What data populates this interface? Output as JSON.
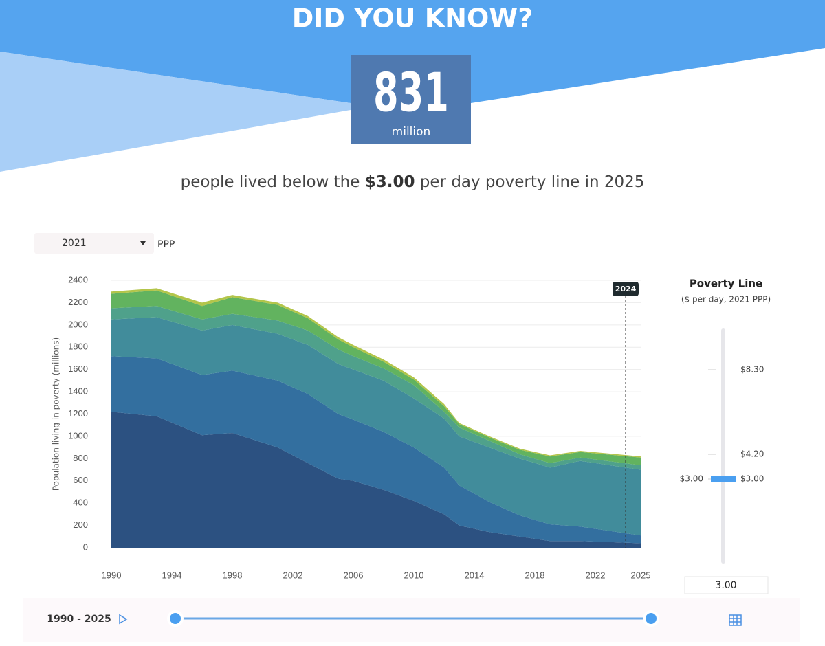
{
  "header": {
    "title": "DID YOU KNOW?",
    "number": "831",
    "unit": "million",
    "sentence_before": "people lived below the ",
    "sentence_bold": "$3.00",
    "sentence_after": " per day poverty line in 2025"
  },
  "controls": {
    "ppp_year": "2021",
    "ppp_label": "PPP",
    "timeline": "1990 - 2025"
  },
  "poverty_panel": {
    "title": "Poverty Line",
    "subtitle": "($ per day, 2021 PPP)",
    "ticks": [
      {
        "value": 8.3,
        "label": "$8.30"
      },
      {
        "value": 4.2,
        "label": "$4.20"
      },
      {
        "value": 3,
        "label": "$3.00"
      }
    ],
    "selected": {
      "value": 3,
      "label": "$3.00"
    },
    "input": "3.00"
  },
  "chart_data": {
    "type": "stacked_area",
    "y_label": "Population living in poverty (millions)",
    "x": [
      1990,
      1993,
      1996,
      1998,
      2001,
      2003,
      2005,
      2006,
      2008,
      2010,
      2012,
      2013,
      2015,
      2017,
      2019,
      2021,
      2025
    ],
    "series": [
      {
        "color": "#2c5181",
        "values": [
          1220,
          1180,
          1010,
          1030,
          900,
          760,
          620,
          600,
          520,
          420,
          300,
          200,
          140,
          100,
          60,
          60,
          40
        ]
      },
      {
        "color": "#336f9f",
        "values": [
          500,
          520,
          540,
          560,
          600,
          620,
          580,
          550,
          520,
          480,
          420,
          360,
          270,
          190,
          150,
          130,
          70
        ]
      },
      {
        "color": "#418c9b",
        "values": [
          330,
          370,
          400,
          410,
          420,
          440,
          450,
          450,
          460,
          440,
          440,
          440,
          490,
          510,
          510,
          590,
          590
        ]
      },
      {
        "color": "#4fa18b",
        "values": [
          100,
          100,
          100,
          100,
          120,
          130,
          130,
          120,
          110,
          120,
          60,
          80,
          60,
          40,
          40,
          30,
          40
        ]
      },
      {
        "color": "#62b35f",
        "values": [
          130,
          140,
          120,
          150,
          140,
          110,
          90,
          80,
          60,
          50,
          50,
          30,
          30,
          40,
          60,
          50,
          70
        ]
      },
      {
        "color": "#b3c54a",
        "values": [
          20,
          20,
          30,
          20,
          20,
          20,
          20,
          20,
          20,
          20,
          20,
          10,
          10,
          10,
          10,
          10,
          10
        ]
      }
    ],
    "xlim": [
      1990,
      2025
    ],
    "xticks": [
      1990,
      1994,
      1998,
      2002,
      2006,
      2010,
      2014,
      2018,
      2022,
      2025
    ],
    "ylim": [
      0,
      2400
    ],
    "yticks": [
      0,
      200,
      400,
      600,
      800,
      1000,
      1200,
      1400,
      1600,
      1800,
      2000,
      2200,
      2400
    ],
    "grid": true,
    "marker": 2024
  }
}
